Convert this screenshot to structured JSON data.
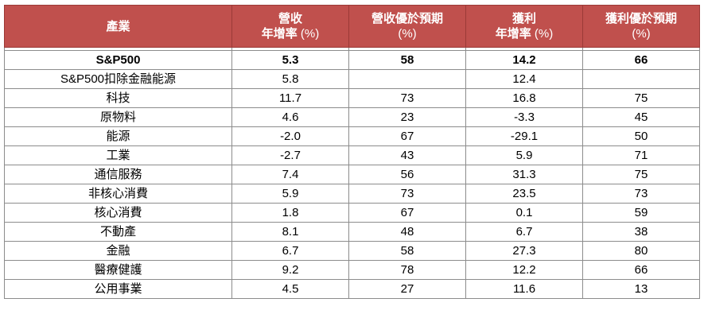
{
  "header": {
    "sector": "產業",
    "rev_growth_line1": "營收",
    "rev_growth_line2": "年增率",
    "rev_growth_unit": "(%)",
    "rev_beat_line1": "營收優於預期",
    "rev_beat_unit": "(%)",
    "earn_growth_line1": "獲利",
    "earn_growth_line2": "年增率",
    "earn_growth_unit": "(%)",
    "earn_beat_line1": "獲利優於預期",
    "earn_beat_unit": "(%)"
  },
  "rows": [
    {
      "sector": "S&P500",
      "rev_growth": "5.3",
      "rev_beat": "58",
      "earn_growth": "14.2",
      "earn_beat": "66"
    },
    {
      "sector": "S&P500扣除金融能源",
      "rev_growth": "5.8",
      "rev_beat": "",
      "earn_growth": "12.4",
      "earn_beat": ""
    },
    {
      "sector": "科技",
      "rev_growth": "11.7",
      "rev_beat": "73",
      "earn_growth": "16.8",
      "earn_beat": "75"
    },
    {
      "sector": "原物料",
      "rev_growth": "4.6",
      "rev_beat": "23",
      "earn_growth": "-3.3",
      "earn_beat": "45"
    },
    {
      "sector": "能源",
      "rev_growth": "-2.0",
      "rev_beat": "67",
      "earn_growth": "-29.1",
      "earn_beat": "50"
    },
    {
      "sector": "工業",
      "rev_growth": "-2.7",
      "rev_beat": "43",
      "earn_growth": "5.9",
      "earn_beat": "71"
    },
    {
      "sector": "通信服務",
      "rev_growth": "7.4",
      "rev_beat": "56",
      "earn_growth": "31.3",
      "earn_beat": "75"
    },
    {
      "sector": "非核心消費",
      "rev_growth": "5.9",
      "rev_beat": "73",
      "earn_growth": "23.5",
      "earn_beat": "73"
    },
    {
      "sector": "核心消費",
      "rev_growth": "1.8",
      "rev_beat": "67",
      "earn_growth": "0.1",
      "earn_beat": "59"
    },
    {
      "sector": "不動產",
      "rev_growth": "8.1",
      "rev_beat": "48",
      "earn_growth": "6.7",
      "earn_beat": "38"
    },
    {
      "sector": "金融",
      "rev_growth": "6.7",
      "rev_beat": "58",
      "earn_growth": "27.3",
      "earn_beat": "80"
    },
    {
      "sector": "醫療健護",
      "rev_growth": "9.2",
      "rev_beat": "78",
      "earn_growth": "12.2",
      "earn_beat": "66"
    },
    {
      "sector": "公用事業",
      "rev_growth": "4.5",
      "rev_beat": "27",
      "earn_growth": "11.6",
      "earn_beat": "13"
    }
  ],
  "colors": {
    "header_bg": "#c0504d",
    "header_text": "#ffffff",
    "grid": "#8c8c8c"
  }
}
